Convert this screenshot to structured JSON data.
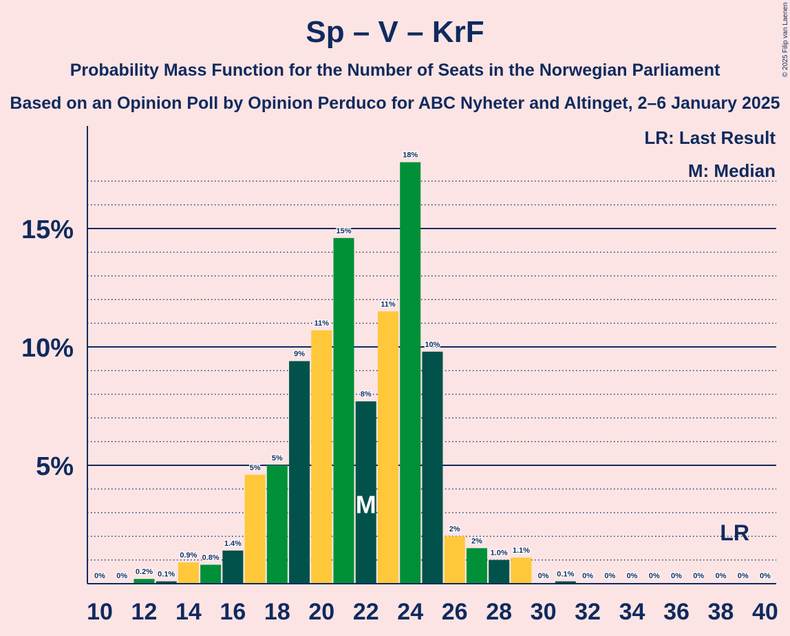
{
  "title": "Sp – V – KrF",
  "subtitle": "Probability Mass Function for the Number of Seats in the Norwegian Parliament",
  "subtitle2": "Based on an Opinion Poll by Opinion Perduco for ABC Nyheter and Altinget, 2–6 January 2025",
  "copyright": "© 2025 Filip van Laenen",
  "legend": {
    "last_result": "LR: Last Result",
    "median": "M: Median"
  },
  "colors": {
    "background": "#fce4e4",
    "text": "#0f2a5e",
    "dark_green": "#00524a",
    "yellow": "#ffc83a",
    "green": "#009038"
  },
  "chart_data": {
    "type": "bar",
    "x": [
      10,
      11,
      12,
      13,
      14,
      15,
      16,
      17,
      18,
      19,
      20,
      21,
      22,
      23,
      24,
      25,
      26,
      27,
      28,
      29,
      30,
      31,
      32,
      33,
      34,
      35,
      36,
      37,
      38,
      39,
      40
    ],
    "values": [
      0,
      0,
      0.2,
      0.1,
      0.9,
      0.8,
      1.4,
      4.6,
      5.0,
      9.4,
      10.7,
      14.6,
      7.7,
      11.5,
      17.8,
      9.8,
      2.0,
      1.5,
      1.0,
      1.1,
      0,
      0.1,
      0,
      0,
      0,
      0,
      0,
      0,
      0,
      0,
      0
    ],
    "data_labels": [
      "0%",
      "0%",
      "0.2%",
      "0.1%",
      "0.9%",
      "0.8%",
      "1.4%",
      "5%",
      "5%",
      "9%",
      "11%",
      "15%",
      "8%",
      "11%",
      "18%",
      "10%",
      "2%",
      "2%",
      "1.0%",
      "1.1%",
      "0%",
      "0.1%",
      "0%",
      "0%",
      "0%",
      "0%",
      "0%",
      "0%",
      "0%",
      "0%",
      "0%"
    ],
    "bar_colors": [
      "dark_green",
      "yellow",
      "green",
      "dark_green",
      "yellow",
      "green",
      "dark_green",
      "yellow",
      "green",
      "dark_green",
      "yellow",
      "green",
      "dark_green",
      "yellow",
      "green",
      "dark_green",
      "yellow",
      "green",
      "dark_green",
      "yellow",
      "green",
      "dark_green",
      "yellow",
      "green",
      "dark_green",
      "yellow",
      "green",
      "dark_green",
      "yellow",
      "green",
      "dark_green"
    ],
    "x_tick_labels": [
      "10",
      "12",
      "14",
      "16",
      "18",
      "20",
      "22",
      "24",
      "26",
      "28",
      "30",
      "32",
      "34",
      "36",
      "38",
      "40"
    ],
    "y_ticks": [
      5,
      10,
      15
    ],
    "y_tick_labels": [
      "5%",
      "10%",
      "15%"
    ],
    "ylim": [
      0,
      18.5
    ],
    "median": 22,
    "median_label": "M",
    "last_result": 39,
    "last_result_label": "LR",
    "grid": true
  }
}
